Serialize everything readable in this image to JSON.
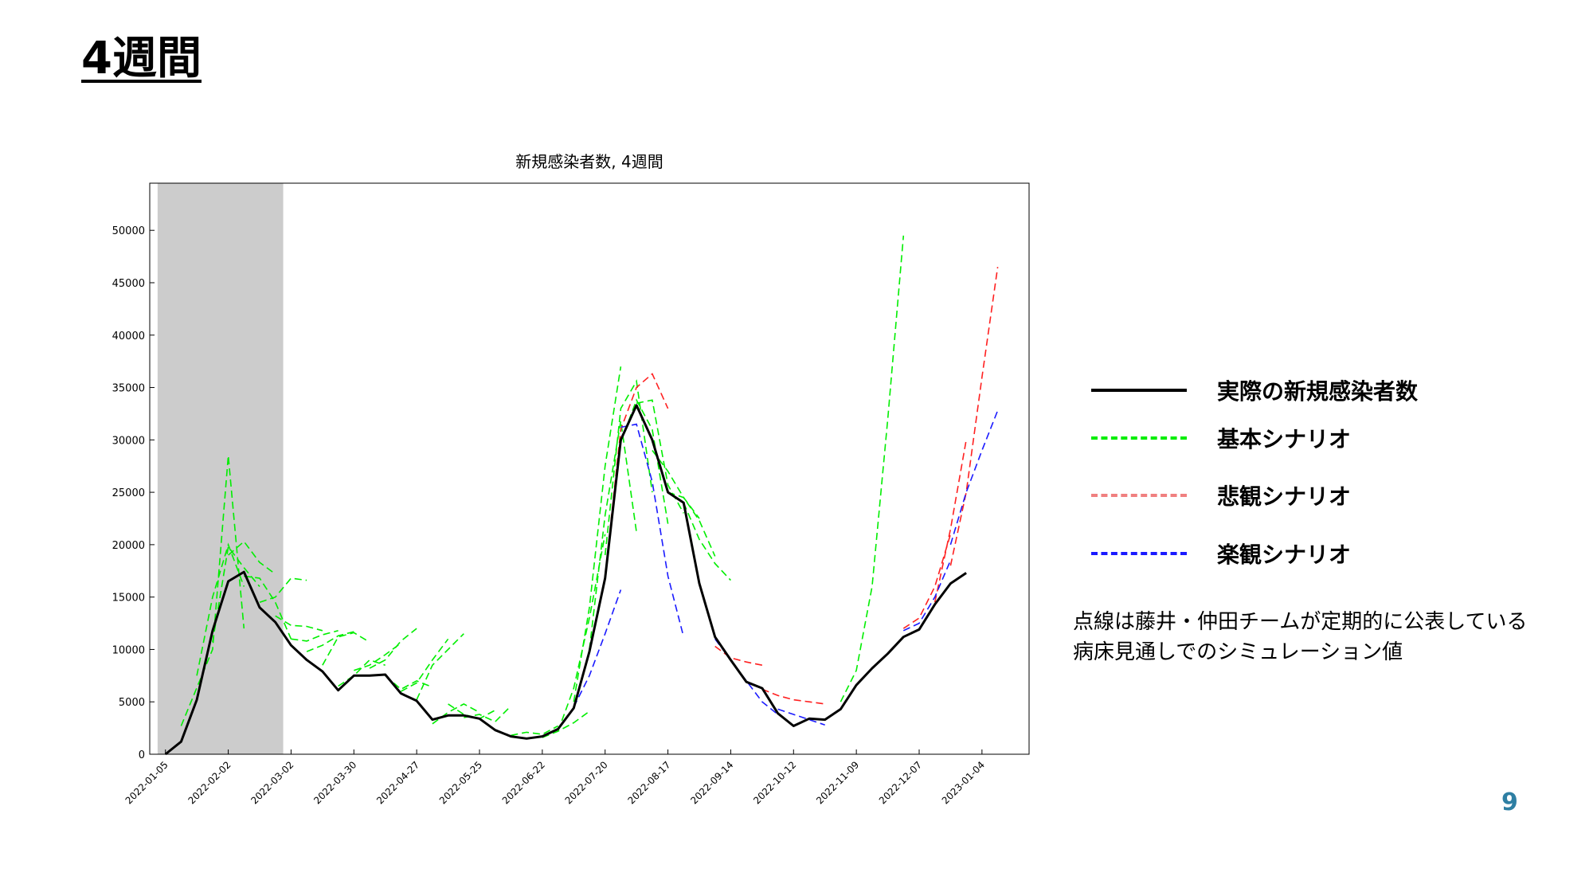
{
  "slide": {
    "title": "4週間",
    "page_number": "9"
  },
  "note": {
    "line1": "点線は藤井・仲田チームが定期的に公表している",
    "line2": "病床見通しでのシミュレーション値"
  },
  "legend": [
    {
      "label": "実際の新規感染者数",
      "color": "#000000",
      "style": "solid"
    },
    {
      "label": "基本シナリオ",
      "color": "#00ee00",
      "style": "dashed"
    },
    {
      "label": "悲観シナリオ",
      "color": "#f08080",
      "style": "dashed"
    },
    {
      "label": "楽観シナリオ",
      "color": "#0000ee",
      "style": "dashed"
    }
  ],
  "chart_data": {
    "type": "line",
    "title": "新規感染者数, 4週間",
    "x_unit": "week index (weekly, starting 2022-01-05)",
    "xlim": [
      -1,
      55
    ],
    "ylim": [
      0,
      54500
    ],
    "y_ticks": [
      0,
      5000,
      10000,
      15000,
      20000,
      25000,
      30000,
      35000,
      40000,
      45000,
      50000
    ],
    "x_tick_positions": [
      0,
      4,
      8,
      12,
      16,
      20,
      24,
      28,
      32,
      36,
      40,
      44,
      48,
      52
    ],
    "x_tick_labels": [
      "2022-01-05",
      "2022-02-02",
      "2022-03-02",
      "2022-03-30",
      "2022-04-27",
      "2022-05-25",
      "2022-06-22",
      "2022-07-20",
      "2022-08-17",
      "2022-09-14",
      "2022-10-12",
      "2022-11-09",
      "2022-12-07",
      "2023-01-04"
    ],
    "shaded_region": [
      -0.5,
      7.5
    ],
    "shaded_color": "#cccccc",
    "colors": {
      "actual": "#000000",
      "basic": "#00ee00",
      "pessimistic": "#ff2020",
      "optimistic": "#1a1aff"
    },
    "actual": {
      "x": [
        0,
        1,
        2,
        3,
        4,
        5,
        6,
        7,
        8,
        9,
        10,
        11,
        12,
        13,
        14,
        15,
        16,
        17,
        18,
        19,
        20,
        21,
        22,
        23,
        24,
        25,
        26,
        27,
        28,
        29,
        30,
        31,
        32,
        33,
        34,
        35,
        36,
        37,
        38,
        39,
        40,
        41,
        42,
        43,
        44,
        45,
        46,
        47,
        48,
        49,
        50,
        51
      ],
      "y": [
        0,
        1200,
        5200,
        11800,
        16500,
        17400,
        14000,
        12600,
        10400,
        9000,
        7900,
        6100,
        7500,
        7500,
        7600,
        5800,
        5100,
        3300,
        3700,
        3700,
        3400,
        2300,
        1700,
        1500,
        1700,
        2400,
        4400,
        9800,
        16800,
        30000,
        33300,
        30000,
        25000,
        24000,
        16300,
        11200,
        9000,
        6900,
        6300,
        3900,
        2700,
        3400,
        3300,
        4300,
        6600,
        8200,
        9600,
        11200,
        11900,
        14300,
        16300,
        17300
      ]
    },
    "simulations": [
      {
        "scenario": "basic",
        "x": [
          1,
          3,
          4,
          5
        ],
        "y": [
          2700,
          10000,
          28500,
          12000
        ]
      },
      {
        "scenario": "basic",
        "x": [
          2,
          3,
          4,
          5
        ],
        "y": [
          7500,
          15000,
          20000,
          16000
        ]
      },
      {
        "scenario": "basic",
        "x": [
          3,
          4,
          5,
          6
        ],
        "y": [
          10700,
          19800,
          17800,
          16000
        ]
      },
      {
        "scenario": "basic",
        "x": [
          4,
          5,
          6,
          7
        ],
        "y": [
          19000,
          20300,
          18300,
          17200
        ]
      },
      {
        "scenario": "basic",
        "x": [
          5,
          6,
          7,
          8
        ],
        "y": [
          17000,
          16800,
          14500,
          11000
        ]
      },
      {
        "scenario": "basic",
        "x": [
          6,
          7,
          8,
          9
        ],
        "y": [
          14500,
          15000,
          16800,
          16600
        ]
      },
      {
        "scenario": "basic",
        "x": [
          7,
          8,
          9,
          10
        ],
        "y": [
          13200,
          12300,
          12200,
          11800
        ]
      },
      {
        "scenario": "basic",
        "x": [
          8,
          9,
          10,
          11
        ],
        "y": [
          11000,
          10800,
          11400,
          11800
        ]
      },
      {
        "scenario": "basic",
        "x": [
          9,
          10,
          11,
          12
        ],
        "y": [
          9800,
          10400,
          11300,
          11700
        ]
      },
      {
        "scenario": "basic",
        "x": [
          10,
          11,
          12,
          13
        ],
        "y": [
          8500,
          11200,
          11600,
          10700
        ]
      },
      {
        "scenario": "basic",
        "x": [
          11,
          12,
          13,
          14
        ],
        "y": [
          6500,
          7500,
          9000,
          8500
        ]
      },
      {
        "scenario": "basic",
        "x": [
          12,
          13,
          14,
          15
        ],
        "y": [
          8000,
          8500,
          9500,
          10600
        ]
      },
      {
        "scenario": "basic",
        "x": [
          13,
          14,
          15,
          16
        ],
        "y": [
          8200,
          9000,
          10800,
          12000
        ]
      },
      {
        "scenario": "basic",
        "x": [
          14,
          15,
          16,
          17
        ],
        "y": [
          7500,
          6200,
          7000,
          6400
        ]
      },
      {
        "scenario": "basic",
        "x": [
          15,
          16,
          17,
          18
        ],
        "y": [
          6000,
          6800,
          9000,
          11000
        ]
      },
      {
        "scenario": "basic",
        "x": [
          16,
          17,
          18,
          19
        ],
        "y": [
          5200,
          8500,
          10000,
          11500
        ]
      },
      {
        "scenario": "basic",
        "x": [
          17,
          18,
          19,
          20
        ],
        "y": [
          2900,
          4000,
          4800,
          4000
        ]
      },
      {
        "scenario": "basic",
        "x": [
          18,
          19,
          20,
          21
        ],
        "y": [
          4800,
          3800,
          3400,
          4200
        ]
      },
      {
        "scenario": "basic",
        "x": [
          19,
          20,
          21,
          22
        ],
        "y": [
          3500,
          3800,
          3100,
          4600
        ]
      },
      {
        "scenario": "basic",
        "x": [
          22,
          23,
          24,
          25
        ],
        "y": [
          1800,
          2100,
          1900,
          2700
        ]
      },
      {
        "scenario": "basic",
        "x": [
          24,
          25,
          26,
          27
        ],
        "y": [
          1600,
          2200,
          3000,
          4100
        ]
      },
      {
        "scenario": "basic",
        "x": [
          25,
          26,
          27,
          28
        ],
        "y": [
          2200,
          6300,
          13000,
          21000
        ]
      },
      {
        "scenario": "basic",
        "x": [
          26,
          27,
          28,
          29
        ],
        "y": [
          5000,
          14000,
          27500,
          37000
        ]
      },
      {
        "scenario": "basic",
        "x": [
          27,
          28,
          29,
          30
        ],
        "y": [
          10000,
          22800,
          31800,
          21200
        ]
      },
      {
        "scenario": "basic",
        "x": [
          28,
          29,
          30,
          31
        ],
        "y": [
          19000,
          33000,
          35600,
          25000
        ]
      },
      {
        "scenario": "basic",
        "x": [
          29,
          30,
          31,
          32
        ],
        "y": [
          29800,
          33800,
          31000,
          22000
        ]
      },
      {
        "scenario": "basic",
        "x": [
          30,
          31,
          32,
          33
        ],
        "y": [
          33500,
          33800,
          25700,
          23000
        ]
      },
      {
        "scenario": "basic",
        "x": [
          31,
          32,
          33,
          34
        ],
        "y": [
          29000,
          27000,
          24500,
          22500
        ]
      },
      {
        "scenario": "basic",
        "x": [
          32,
          33,
          34,
          35
        ],
        "y": [
          25000,
          24500,
          22300,
          18900
        ]
      },
      {
        "scenario": "basic",
        "x": [
          33,
          34,
          35,
          36
        ],
        "y": [
          24000,
          20500,
          18200,
          16600
        ]
      },
      {
        "scenario": "basic",
        "x": [
          43,
          44,
          45,
          46,
          47
        ],
        "y": [
          5000,
          8000,
          16000,
          32000,
          49500
        ]
      },
      {
        "scenario": "pessimistic",
        "x": [
          28,
          29,
          30,
          31,
          32
        ],
        "y": [
          17000,
          31000,
          35000,
          36300,
          33000
        ]
      },
      {
        "scenario": "pessimistic",
        "x": [
          35,
          36,
          37,
          38
        ],
        "y": [
          10300,
          9200,
          8800,
          8500
        ]
      },
      {
        "scenario": "pessimistic",
        "x": [
          38,
          39,
          40,
          41,
          42
        ],
        "y": [
          6200,
          5600,
          5200,
          5000,
          4800
        ]
      },
      {
        "scenario": "pessimistic",
        "x": [
          47,
          48,
          49,
          50
        ],
        "y": [
          12000,
          13000,
          16000,
          21000
        ]
      },
      {
        "scenario": "pessimistic",
        "x": [
          49,
          50,
          51
        ],
        "y": [
          14500,
          21500,
          30000
        ]
      },
      {
        "scenario": "pessimistic",
        "x": [
          50,
          51,
          52,
          53
        ],
        "y": [
          18000,
          25000,
          36000,
          46500
        ]
      },
      {
        "scenario": "optimistic",
        "x": [
          26,
          27,
          28,
          29
        ],
        "y": [
          4500,
          7500,
          11500,
          15700
        ]
      },
      {
        "scenario": "optimistic",
        "x": [
          29,
          30,
          31,
          32,
          33
        ],
        "y": [
          31200,
          31500,
          26000,
          17000,
          11200
        ]
      },
      {
        "scenario": "optimistic",
        "x": [
          35,
          36,
          37,
          38,
          39
        ],
        "y": [
          11000,
          9000,
          7000,
          5000,
          3800
        ]
      },
      {
        "scenario": "optimistic",
        "x": [
          39,
          40,
          41,
          42
        ],
        "y": [
          4300,
          3800,
          3300,
          2800
        ]
      },
      {
        "scenario": "optimistic",
        "x": [
          47,
          48,
          49,
          50
        ],
        "y": [
          11800,
          12500,
          15000,
          18500
        ]
      },
      {
        "scenario": "optimistic",
        "x": [
          50,
          51,
          52,
          53
        ],
        "y": [
          20000,
          25000,
          29000,
          32800
        ]
      }
    ]
  }
}
